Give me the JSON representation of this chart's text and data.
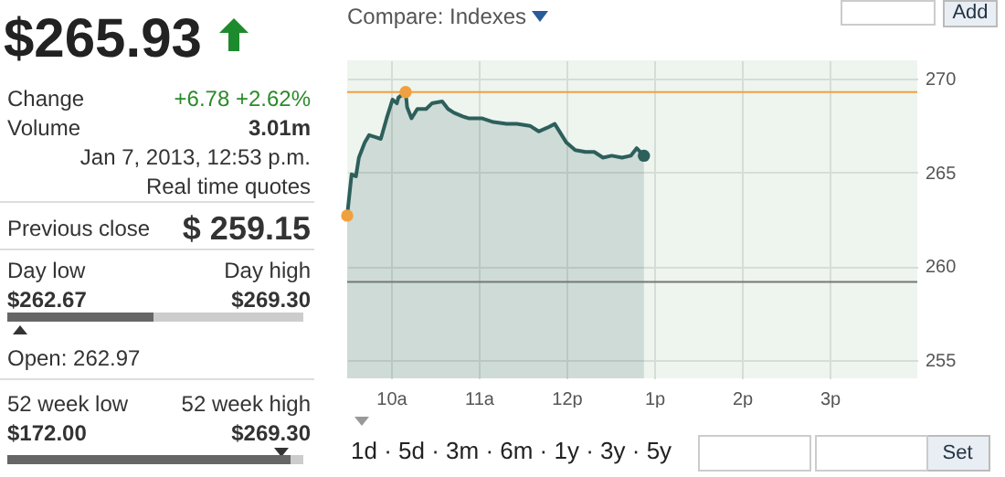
{
  "chart_data": [
    {
      "type": "other",
      "annotations": [
        "$265.93",
        "Change",
        "+6.78 +2.62%",
        "Volume",
        "3.01m",
        "Jan 7, 2013, 12:53 p.m.",
        "Real time quotes",
        "Previous close",
        "$ 259.15",
        "Day low",
        "Day high",
        "$262.67",
        "$269.30",
        "Open: 262.97",
        "52 week low",
        "52 week high",
        "$172.00",
        "$269.30"
      ]
    },
    {
      "type": "area",
      "annotations": [
        "Compare: Indexes",
        "Add",
        "1d · 5d · 3m · 6m · 1y · 3y · 5y",
        "Set"
      ],
      "xlim": [
        "2013-01-07T09:30",
        "2013-01-07T16:00"
      ],
      "xticks": [
        {
          "value": "2013-01-07T10:00",
          "label": "10a"
        },
        {
          "value": "2013-01-07T11:00",
          "label": "11a"
        },
        {
          "value": "2013-01-07T12:00",
          "label": "12p"
        },
        {
          "value": "2013-01-07T13:00",
          "label": "1p"
        },
        {
          "value": "2013-01-07T14:00",
          "label": "2p"
        },
        {
          "value": "2013-01-07T15:00",
          "label": "3p"
        }
      ],
      "ylim": [
        254,
        271
      ],
      "yticks": [
        255,
        260,
        265,
        270
      ],
      "grid": true,
      "ref_lines": [
        {
          "axis": "y",
          "value": 269.3,
          "color": "#f0a040"
        },
        {
          "axis": "y",
          "value": 259.15,
          "color": "#777777"
        }
      ],
      "series": [
        {
          "type": "area",
          "color": "#2d5f5b",
          "x": [
            "2013-01-07T09:30",
            "2013-01-07T09:33",
            "2013-01-07T09:36",
            "2013-01-07T09:38",
            "2013-01-07T09:42",
            "2013-01-07T09:45",
            "2013-01-07T09:49",
            "2013-01-07T09:53",
            "2013-01-07T09:57",
            "2013-01-07T10:01",
            "2013-01-07T10:04",
            "2013-01-07T10:05",
            "2013-01-07T10:10",
            "2013-01-07T10:11",
            "2013-01-07T10:14",
            "2013-01-07T10:18",
            "2013-01-07T10:24",
            "2013-01-07T10:28",
            "2013-01-07T10:35",
            "2013-01-07T10:39",
            "2013-01-07T10:43",
            "2013-01-07T10:49",
            "2013-01-07T10:53",
            "2013-01-07T11:02",
            "2013-01-07T11:10",
            "2013-01-07T11:19",
            "2013-01-07T11:26",
            "2013-01-07T11:35",
            "2013-01-07T11:41",
            "2013-01-07T11:47",
            "2013-01-07T11:52",
            "2013-01-07T11:56",
            "2013-01-07T12:00",
            "2013-01-07T12:06",
            "2013-01-07T12:13",
            "2013-01-07T12:19",
            "2013-01-07T12:25",
            "2013-01-07T12:31",
            "2013-01-07T12:38",
            "2013-01-07T12:44",
            "2013-01-07T12:48",
            "2013-01-07T12:53"
          ],
          "values": [
            262.7,
            264.9,
            264.8,
            265.8,
            266.6,
            267.0,
            266.9,
            266.8,
            267.9,
            268.9,
            268.7,
            269.0,
            269.3,
            268.5,
            267.9,
            268.4,
            268.4,
            268.7,
            268.8,
            268.4,
            268.2,
            268.0,
            267.9,
            267.9,
            267.7,
            267.6,
            267.6,
            267.5,
            267.2,
            267.4,
            267.6,
            267.1,
            266.6,
            266.2,
            266.1,
            266.1,
            265.8,
            265.9,
            265.8,
            265.9,
            266.3,
            265.9
          ]
        },
        {
          "type": "scatter",
          "marker": "circle",
          "x": [
            "2013-01-07T09:30",
            "2013-01-07T10:10",
            "2013-01-07T12:53"
          ],
          "values": [
            262.7,
            269.3,
            265.9
          ],
          "colors": [
            "#f0a040",
            "#f0a040",
            "#2d5f5b"
          ]
        }
      ]
    }
  ]
}
